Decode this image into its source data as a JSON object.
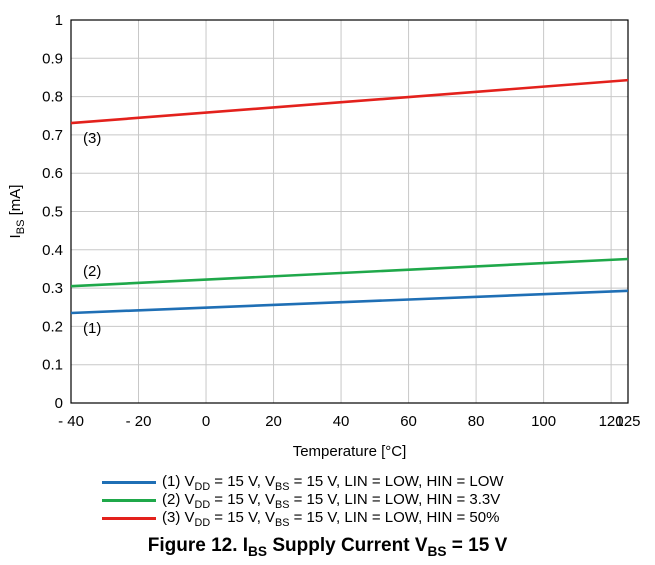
{
  "chart_data": {
    "type": "line",
    "xlabel": "Temperature [°C]",
    "ylabel": {
      "main": "I",
      "sub": "BS",
      "rest": " [mA]"
    },
    "xlim": [
      -40,
      125
    ],
    "ylim": [
      0,
      1
    ],
    "x_ticks": [
      -40,
      -20,
      0,
      20,
      40,
      60,
      80,
      100,
      120,
      125
    ],
    "x_tick_labels": [
      "- 40",
      "- 20",
      "0",
      "20",
      "40",
      "60",
      "80",
      "100",
      "120",
      "125"
    ],
    "y_ticks": [
      0,
      0.1,
      0.2,
      0.3,
      0.4,
      0.5,
      0.6,
      0.7,
      0.8,
      0.9,
      1
    ],
    "y_tick_labels": [
      "0",
      "0.1",
      "0.2",
      "0.3",
      "0.4",
      "0.5",
      "0.6",
      "0.7",
      "0.8",
      "0.9",
      "1"
    ],
    "grid": true,
    "series": [
      {
        "name": "(1) VDD = 15 V, VBS = 15 V, LIN = LOW, HIN = LOW",
        "tag": "(1)",
        "color": "#1f6fb5",
        "x": [
          -40,
          125
        ],
        "y": [
          0.235,
          0.293
        ],
        "legend_parts": [
          "(1) V",
          "DD",
          " = 15 V, V",
          "BS",
          " = 15 V, LIN = LOW, HIN = LOW"
        ]
      },
      {
        "name": "(2) VDD = 15 V, VBS = 15 V, LIN = LOW, HIN = 3.3V",
        "tag": "(2)",
        "color": "#1fa84a",
        "x": [
          -40,
          125
        ],
        "y": [
          0.305,
          0.376
        ],
        "legend_parts": [
          "(2) V",
          "DD",
          " = 15 V, V",
          "BS",
          " = 15 V, LIN = LOW, HIN = 3.3V"
        ]
      },
      {
        "name": "(3) VDD = 15 V, VBS = 15 V, LIN = LOW, HIN = 50%",
        "tag": "(3)",
        "color": "#e3211c",
        "x": [
          -40,
          125
        ],
        "y": [
          0.731,
          0.843
        ],
        "legend_parts": [
          "(3) V",
          "DD",
          " = 15 V, V",
          "BS",
          " = 15 V, LIN = LOW, HIN = 50%"
        ]
      }
    ]
  },
  "caption": {
    "prefix": "Figure 12. I",
    "sub1": "BS",
    "middle": " Supply Current V",
    "sub2": "BS",
    "suffix": " = 15 V"
  }
}
